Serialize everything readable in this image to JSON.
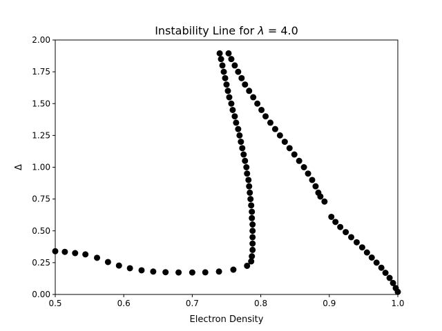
{
  "chart_data": {
    "type": "scatter",
    "title_prefix": "Instability Line for ",
    "title_symbol": "λ",
    "title_suffix": " =  4.0",
    "xlabel": "Electron Density",
    "ylabel": "Δ",
    "xlim": [
      0.5,
      1.0
    ],
    "ylim": [
      0.0,
      2.0
    ],
    "xticks": [
      "0.5",
      "0.6",
      "0.7",
      "0.8",
      "0.9",
      "1.0"
    ],
    "yticks": [
      "0.00",
      "0.25",
      "0.50",
      "0.75",
      "1.00",
      "1.25",
      "1.50",
      "1.75",
      "2.00"
    ],
    "grid": false,
    "legend": "none",
    "marker_color": "#000000",
    "series": [
      {
        "points": [
          [
            0.5,
            0.34
          ],
          [
            0.514,
            0.335
          ],
          [
            0.529,
            0.325
          ],
          [
            0.544,
            0.315
          ],
          [
            0.561,
            0.288
          ],
          [
            0.577,
            0.255
          ],
          [
            0.593,
            0.227
          ],
          [
            0.609,
            0.206
          ],
          [
            0.626,
            0.19
          ],
          [
            0.643,
            0.18
          ],
          [
            0.661,
            0.175
          ],
          [
            0.68,
            0.173
          ],
          [
            0.7,
            0.173
          ],
          [
            0.719,
            0.174
          ],
          [
            0.739,
            0.18
          ],
          [
            0.76,
            0.195
          ],
          [
            0.78,
            0.225
          ],
          [
            0.786,
            0.26
          ],
          [
            0.787,
            0.3
          ],
          [
            0.788,
            0.35
          ],
          [
            0.788,
            0.4
          ],
          [
            0.788,
            0.45
          ],
          [
            0.788,
            0.5
          ],
          [
            0.788,
            0.55
          ],
          [
            0.787,
            0.6
          ],
          [
            0.787,
            0.65
          ],
          [
            0.786,
            0.7
          ],
          [
            0.785,
            0.75
          ],
          [
            0.784,
            0.8
          ],
          [
            0.783,
            0.85
          ],
          [
            0.782,
            0.9
          ],
          [
            0.78,
            0.95
          ],
          [
            0.779,
            1.0
          ],
          [
            0.777,
            1.05
          ],
          [
            0.775,
            1.1
          ],
          [
            0.773,
            1.15
          ],
          [
            0.771,
            1.2
          ],
          [
            0.769,
            1.25
          ],
          [
            0.767,
            1.3
          ],
          [
            0.764,
            1.35
          ],
          [
            0.762,
            1.4
          ],
          [
            0.759,
            1.45
          ],
          [
            0.757,
            1.5
          ],
          [
            0.754,
            1.55
          ],
          [
            0.752,
            1.6
          ],
          [
            0.75,
            1.65
          ],
          [
            0.748,
            1.7
          ],
          [
            0.746,
            1.75
          ],
          [
            0.744,
            1.8
          ],
          [
            0.742,
            1.85
          ],
          [
            0.74,
            1.895
          ],
          [
            0.753,
            1.895
          ],
          [
            0.757,
            1.85
          ],
          [
            0.762,
            1.8
          ],
          [
            0.767,
            1.75
          ],
          [
            0.772,
            1.7
          ],
          [
            0.777,
            1.65
          ],
          [
            0.783,
            1.6
          ],
          [
            0.789,
            1.55
          ],
          [
            0.795,
            1.5
          ],
          [
            0.801,
            1.45
          ],
          [
            0.807,
            1.4
          ],
          [
            0.814,
            1.35
          ],
          [
            0.821,
            1.3
          ],
          [
            0.828,
            1.25
          ],
          [
            0.835,
            1.2
          ],
          [
            0.842,
            1.15
          ],
          [
            0.849,
            1.1
          ],
          [
            0.856,
            1.05
          ],
          [
            0.863,
            1.0
          ],
          [
            0.869,
            0.95
          ],
          [
            0.875,
            0.9
          ],
          [
            0.88,
            0.85
          ],
          [
            0.884,
            0.8
          ],
          [
            0.887,
            0.77
          ],
          [
            0.893,
            0.73
          ],
          [
            0.903,
            0.61
          ],
          [
            0.909,
            0.57
          ],
          [
            0.916,
            0.53
          ],
          [
            0.924,
            0.49
          ],
          [
            0.932,
            0.45
          ],
          [
            0.94,
            0.41
          ],
          [
            0.948,
            0.37
          ],
          [
            0.955,
            0.33
          ],
          [
            0.962,
            0.29
          ],
          [
            0.969,
            0.25
          ],
          [
            0.976,
            0.21
          ],
          [
            0.982,
            0.17
          ],
          [
            0.988,
            0.13
          ],
          [
            0.993,
            0.09
          ],
          [
            0.997,
            0.05
          ],
          [
            1.0,
            0.02
          ]
        ]
      }
    ]
  }
}
